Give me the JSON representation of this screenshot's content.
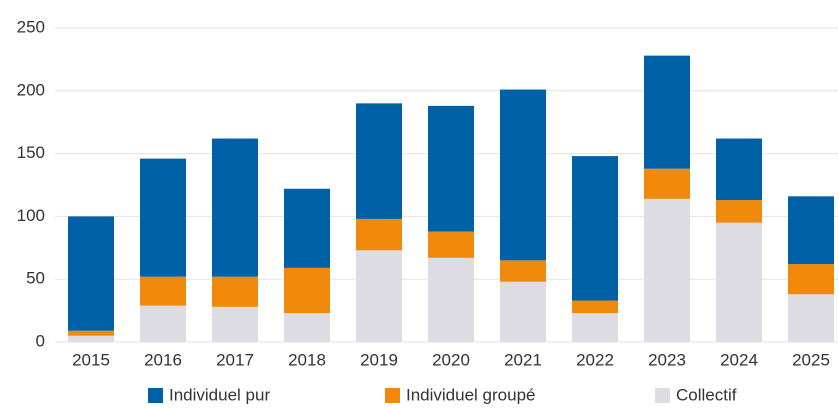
{
  "chart_data": {
    "type": "stacked_bar",
    "categories": [
      "2015",
      "2016",
      "2017",
      "2018",
      "2019",
      "2020",
      "2021",
      "2022",
      "2023",
      "2024",
      "2025"
    ],
    "series": [
      {
        "name": "Individuel pur",
        "color": "#0061a7",
        "values": [
          91,
          94,
          110,
          63,
          92,
          100,
          136,
          115,
          90,
          49,
          54
        ]
      },
      {
        "name": "Individuel groupé",
        "color": "#f08a0c",
        "values": [
          4,
          23,
          24,
          36,
          25,
          21,
          17,
          10,
          24,
          18,
          24
        ]
      },
      {
        "name": "Collectif",
        "color": "#dcdce2",
        "values": [
          5,
          29,
          28,
          23,
          73,
          67,
          48,
          23,
          114,
          95,
          38
        ]
      }
    ],
    "ylim": [
      0,
      250
    ],
    "yticks": [
      0,
      50,
      100,
      150,
      200,
      250
    ],
    "grid": true
  }
}
